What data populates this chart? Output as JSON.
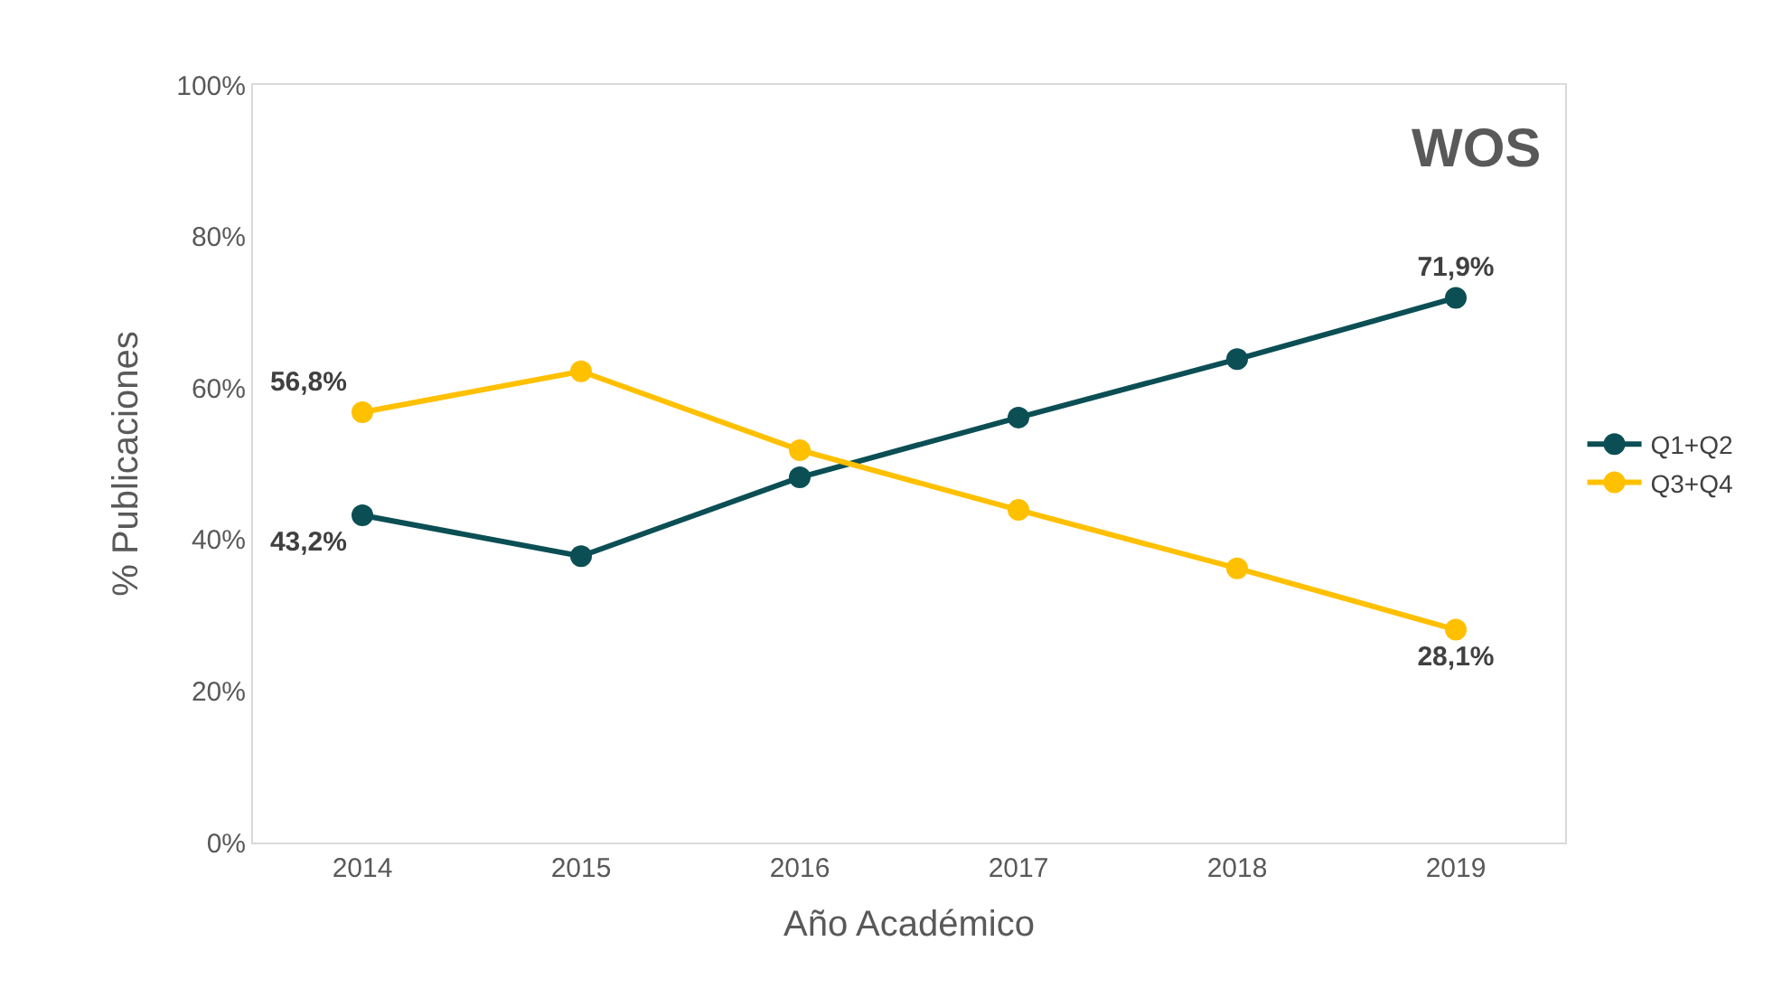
{
  "chart_data": {
    "type": "line",
    "categories": [
      "2014",
      "2015",
      "2016",
      "2017",
      "2018",
      "2019"
    ],
    "series": [
      {
        "name": "Q1+Q2",
        "color": "#0b4f55",
        "values": [
          43.2,
          37.8,
          48.2,
          56.1,
          63.8,
          71.9
        ],
        "value_labels": [
          "43,2%",
          null,
          null,
          null,
          null,
          "71,9%"
        ]
      },
      {
        "name": "Q3+Q4",
        "color": "#ffc000",
        "values": [
          56.8,
          62.2,
          51.8,
          43.9,
          36.2,
          28.1
        ],
        "value_labels": [
          "56,8%",
          null,
          null,
          null,
          null,
          "28,1%"
        ]
      }
    ],
    "ylim": [
      0,
      100
    ],
    "yticks": [
      {
        "value": 0,
        "label": "0%"
      },
      {
        "value": 20,
        "label": "20%"
      },
      {
        "value": 40,
        "label": "40%"
      },
      {
        "value": 60,
        "label": "60%"
      },
      {
        "value": 80,
        "label": "80%"
      },
      {
        "value": 100,
        "label": "100%"
      }
    ],
    "xlabel": "Año Académico",
    "ylabel": "% Publicaciones",
    "annotations": [
      "WOS"
    ],
    "grid": false,
    "legend": "right",
    "marker": "circle",
    "line_style": "solid"
  }
}
